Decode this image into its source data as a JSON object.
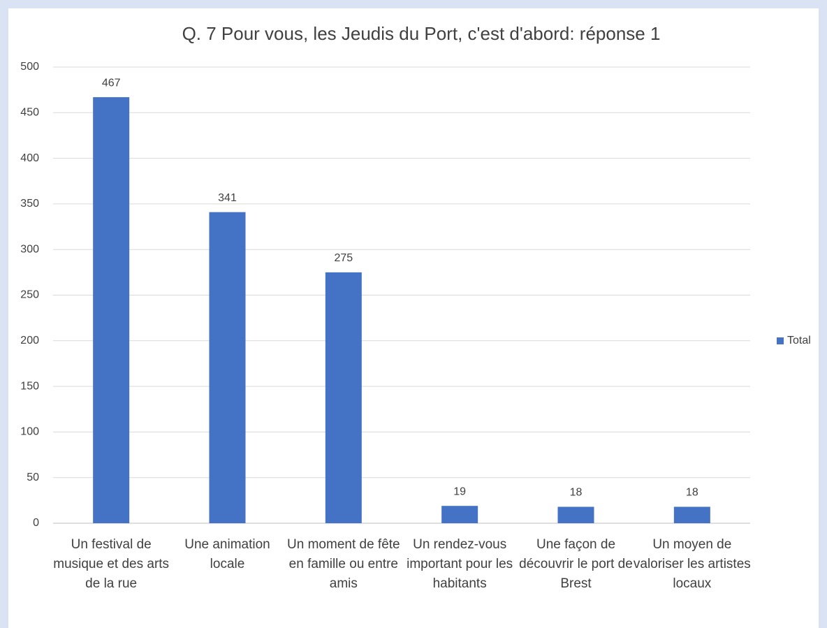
{
  "chart_data": {
    "type": "bar",
    "title": "Q. 7 Pour vous, les Jeudis du Port, c'est d'abord: réponse 1",
    "categories": [
      "Un festival de musique et des arts de la rue",
      "Une animation locale",
      "Un moment de fête en famille ou entre amis",
      "Un rendez-vous important pour les habitants",
      "Une façon de découvrir le port de Brest",
      "Un moyen de valoriser les artistes locaux"
    ],
    "series": [
      {
        "name": "Total",
        "color": "#4472c4",
        "values": [
          467,
          341,
          275,
          19,
          18,
          18
        ]
      }
    ],
    "ylim": [
      0,
      500
    ],
    "yticks": [
      0,
      50,
      100,
      150,
      200,
      250,
      300,
      350,
      400,
      450,
      500
    ],
    "grid": true,
    "legend": "right",
    "data_labels": true
  }
}
